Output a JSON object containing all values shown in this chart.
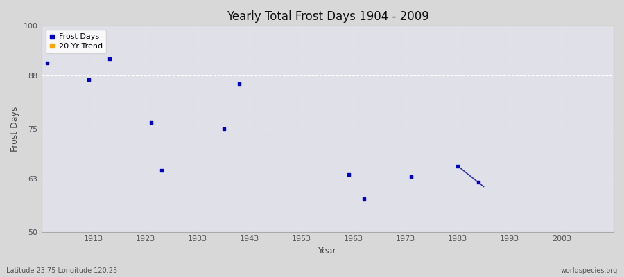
{
  "title": "Yearly Total Frost Days 1904 - 2009",
  "xlabel": "Year",
  "ylabel": "Frost Days",
  "subtitle_left": "Latitude 23.75 Longitude 120.25",
  "subtitle_right": "worldspecies.org",
  "xlim": [
    1903,
    2013
  ],
  "ylim": [
    50,
    100
  ],
  "yticks": [
    50,
    63,
    75,
    88,
    100
  ],
  "xticks": [
    1913,
    1923,
    1933,
    1943,
    1953,
    1963,
    1973,
    1983,
    1993,
    2003
  ],
  "scatter_color": "#0000cc",
  "trend_color": "#3333bb",
  "fig_bg_color": "#d8d8d8",
  "plot_bg_color": "#e0e0e8",
  "grid_color": "#ffffff",
  "scatter_points": [
    [
      1904,
      91
    ],
    [
      1912,
      87
    ],
    [
      1916,
      92
    ],
    [
      1924,
      76.5
    ],
    [
      1926,
      65
    ],
    [
      1938,
      75
    ],
    [
      1941,
      86
    ],
    [
      1962,
      64
    ],
    [
      1965,
      58
    ],
    [
      1974,
      63.5
    ],
    [
      1983,
      66
    ],
    [
      1987,
      62
    ]
  ],
  "trend_line": [
    [
      1983,
      66
    ],
    [
      1988,
      61
    ]
  ],
  "legend_entries": [
    "Frost Days",
    "20 Yr Trend"
  ],
  "legend_colors": [
    "#0000cc",
    "#ffa500"
  ],
  "marker_size": 3
}
